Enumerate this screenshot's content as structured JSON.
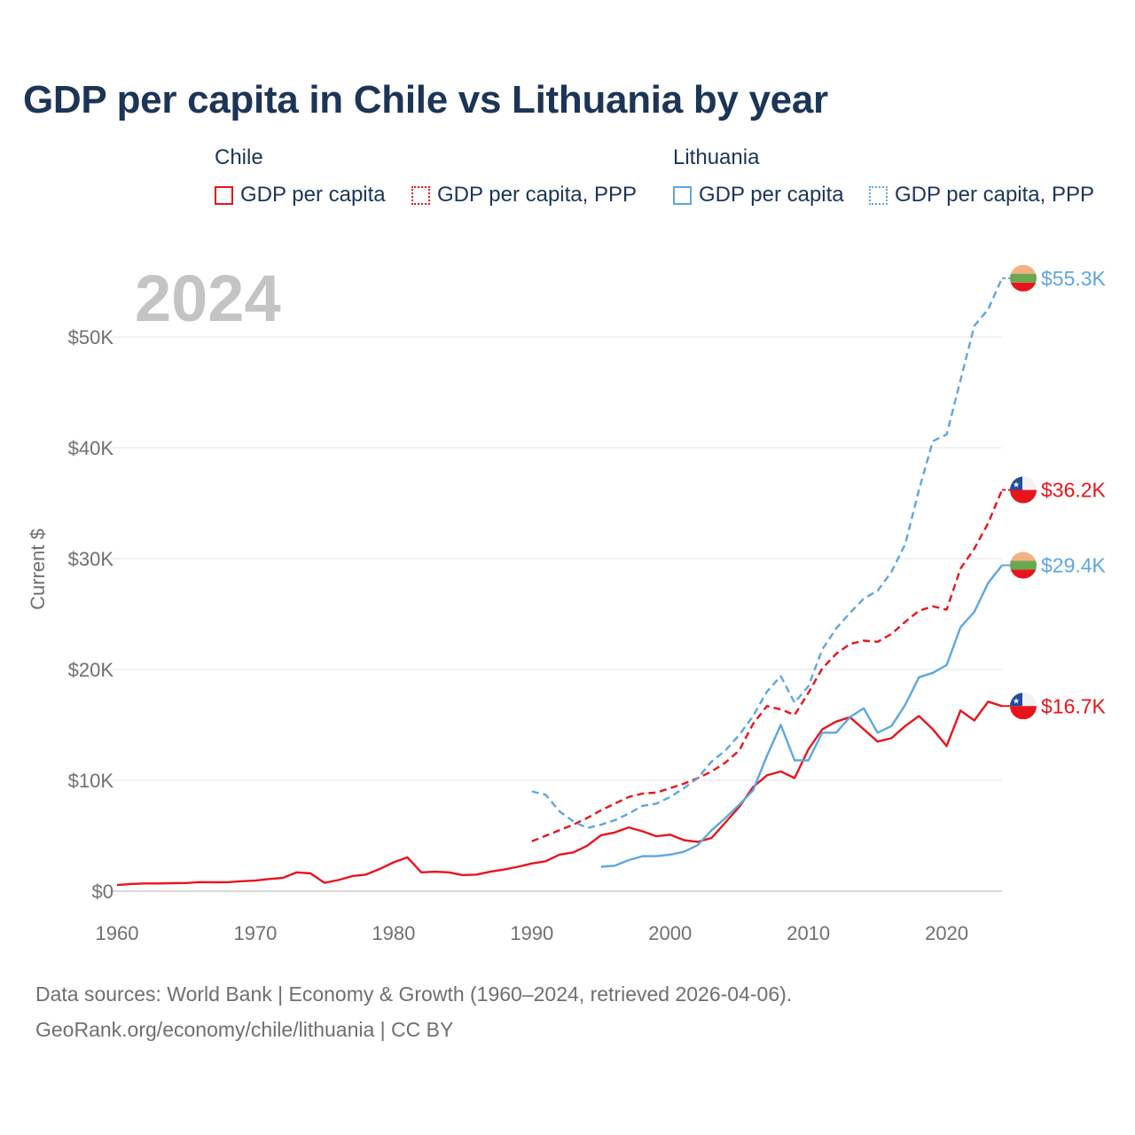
{
  "title": "GDP per capita in Chile vs Lithuania by year",
  "year_watermark": "2024",
  "legend": {
    "groups": [
      {
        "country": "Chile",
        "color": "#e8141c",
        "items": [
          {
            "label": "GDP per capita",
            "style": "solid"
          },
          {
            "label": "GDP per capita, PPP",
            "style": "dotted"
          }
        ]
      },
      {
        "country": "Lithuania",
        "color": "#5ea6e0",
        "items": [
          {
            "label": "GDP per capita",
            "style": "solid"
          },
          {
            "label": "GDP per capita, PPP",
            "style": "dotted"
          }
        ]
      }
    ]
  },
  "footer": {
    "line1": "Data sources: World Bank | Economy & Growth (1960–2024, retrieved 2026-04-06).",
    "line2": "GeoRank.org/economy/chile/lithuania | CC BY"
  },
  "chart_data": {
    "type": "line",
    "title": "GDP per capita in Chile vs Lithuania by year",
    "xlabel": "",
    "ylabel": "Current $",
    "xlim": [
      1960,
      2024
    ],
    "ylim": [
      0,
      55000
    ],
    "x_ticks": [
      1960,
      1970,
      1980,
      1990,
      2000,
      2010,
      2020
    ],
    "y_ticks": [
      0,
      10000,
      20000,
      30000,
      40000,
      50000
    ],
    "y_tick_labels": [
      "$0",
      "$10K",
      "$20K",
      "$30K",
      "$40K",
      "$50K"
    ],
    "grid": true,
    "series": [
      {
        "name": "Chile GDP per capita",
        "country": "Chile",
        "color": "#e8141c",
        "dash": "solid",
        "end_label": "$16.7K",
        "x": [
          1960,
          1961,
          1962,
          1963,
          1964,
          1965,
          1966,
          1967,
          1968,
          1969,
          1970,
          1971,
          1972,
          1973,
          1974,
          1975,
          1976,
          1977,
          1978,
          1979,
          1980,
          1981,
          1982,
          1983,
          1984,
          1985,
          1986,
          1987,
          1988,
          1989,
          1990,
          1991,
          1992,
          1993,
          1994,
          1995,
          1996,
          1997,
          1998,
          1999,
          2000,
          2001,
          2002,
          2003,
          2004,
          2005,
          2006,
          2007,
          2008,
          2009,
          2010,
          2011,
          2012,
          2013,
          2014,
          2015,
          2016,
          2017,
          2018,
          2019,
          2020,
          2021,
          2022,
          2023,
          2024
        ],
        "values": [
          550,
          650,
          700,
          700,
          720,
          740,
          820,
          800,
          810,
          900,
          950,
          1100,
          1200,
          1700,
          1600,
          750,
          1000,
          1350,
          1500,
          2000,
          2600,
          3050,
          1700,
          1750,
          1700,
          1450,
          1500,
          1750,
          1950,
          2200,
          2500,
          2700,
          3300,
          3500,
          4100,
          5050,
          5300,
          5750,
          5400,
          4950,
          5100,
          4600,
          4450,
          4800,
          6200,
          7600,
          9400,
          10450,
          10800,
          10200,
          12800,
          14600,
          15300,
          15700,
          14600,
          13500,
          13800,
          14900,
          15800,
          14600,
          13100,
          16300,
          15400,
          17100,
          16700
        ]
      },
      {
        "name": "Chile GDP per capita, PPP",
        "country": "Chile",
        "color": "#e8141c",
        "dash": "dashed",
        "end_label": "$36.2K",
        "x": [
          1990,
          1991,
          1992,
          1993,
          1994,
          1995,
          1996,
          1997,
          1998,
          1999,
          2000,
          2001,
          2002,
          2003,
          2004,
          2005,
          2006,
          2007,
          2008,
          2009,
          2010,
          2011,
          2012,
          2013,
          2014,
          2015,
          2016,
          2017,
          2018,
          2019,
          2020,
          2021,
          2022,
          2023,
          2024
        ],
        "values": [
          4500,
          5000,
          5500,
          6000,
          6600,
          7300,
          7900,
          8500,
          8800,
          8900,
          9300,
          9700,
          10200,
          10800,
          11600,
          12700,
          15100,
          16700,
          16400,
          15900,
          17900,
          20100,
          21400,
          22300,
          22600,
          22500,
          23200,
          24300,
          25300,
          25700,
          25400,
          29100,
          30900,
          33200,
          36200
        ]
      },
      {
        "name": "Lithuania GDP per capita",
        "country": "Lithuania",
        "color": "#5ea6e0",
        "dash": "solid",
        "end_label": "$29.4K",
        "x": [
          1995,
          1996,
          1997,
          1998,
          1999,
          2000,
          2001,
          2002,
          2003,
          2004,
          2005,
          2006,
          2007,
          2008,
          2009,
          2010,
          2011,
          2012,
          2013,
          2014,
          2015,
          2016,
          2017,
          2018,
          2019,
          2020,
          2021,
          2022,
          2023,
          2024
        ],
        "values": [
          2200,
          2300,
          2800,
          3150,
          3150,
          3300,
          3550,
          4150,
          5500,
          6600,
          7800,
          9100,
          12200,
          15000,
          11800,
          11800,
          14300,
          14300,
          15700,
          16500,
          14300,
          14900,
          16800,
          19300,
          19700,
          20400,
          23800,
          25200,
          27800,
          29400
        ]
      },
      {
        "name": "Lithuania GDP per capita, PPP",
        "country": "Lithuania",
        "color": "#5ea6e0",
        "dash": "dashed",
        "end_label": "$55.3K",
        "x": [
          1990,
          1991,
          1992,
          1993,
          1994,
          1995,
          1996,
          1997,
          1998,
          1999,
          2000,
          2001,
          2002,
          2003,
          2004,
          2005,
          2006,
          2007,
          2008,
          2009,
          2010,
          2011,
          2012,
          2013,
          2014,
          2015,
          2016,
          2017,
          2018,
          2019,
          2020,
          2021,
          2022,
          2023,
          2024
        ],
        "values": [
          9000,
          8700,
          7200,
          6300,
          5700,
          6000,
          6400,
          7000,
          7700,
          7900,
          8500,
          9300,
          10200,
          11700,
          12700,
          14100,
          15800,
          18000,
          19400,
          17000,
          18500,
          21800,
          23700,
          25100,
          26400,
          27100,
          28800,
          31300,
          36200,
          40600,
          41200,
          46100,
          51000,
          52500,
          55300
        ]
      }
    ]
  }
}
